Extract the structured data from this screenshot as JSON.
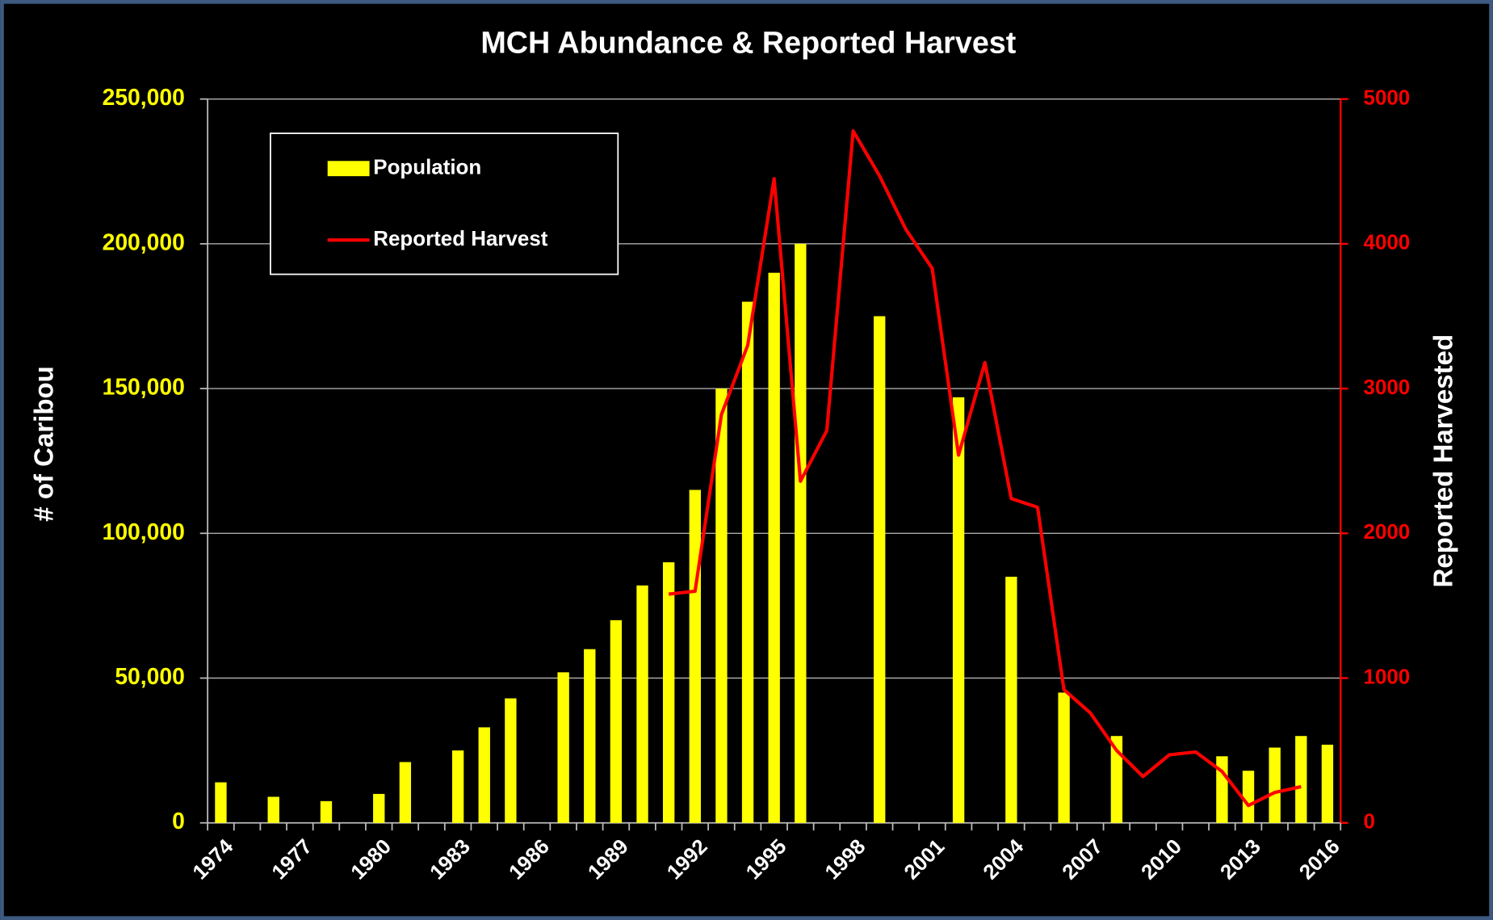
{
  "chart_data": {
    "type": "bar",
    "title": "MCH Abundance & Reported Harvest",
    "y_label": "# of Caribou",
    "y2_label": "Reported Harvested",
    "categories": [
      "1974",
      null,
      null,
      "1977",
      null,
      null,
      "1980",
      null,
      null,
      "1983",
      null,
      null,
      "1986",
      null,
      null,
      "1989",
      null,
      null,
      "1992",
      null,
      null,
      "1995",
      null,
      null,
      "1998",
      null,
      null,
      "2001",
      null,
      null,
      "2004",
      null,
      null,
      "2007",
      null,
      null,
      "2010",
      null,
      null,
      "2013",
      null,
      null,
      "2016"
    ],
    "series": [
      {
        "name": "Population",
        "type": "bar",
        "color": "#ffff00",
        "values": [
          14000,
          null,
          9000,
          null,
          7500,
          null,
          10000,
          21000,
          null,
          25000,
          33000,
          43000,
          null,
          52000,
          60000,
          70000,
          82000,
          90000,
          115000,
          150000,
          180000,
          190000,
          200000,
          null,
          null,
          175000,
          null,
          null,
          147000,
          null,
          85000,
          null,
          45000,
          null,
          30000,
          null,
          null,
          null,
          23000,
          18000,
          26000,
          30000,
          27000
        ]
      },
      {
        "name": "Reported Harvest",
        "type": "line",
        "axis": "y2",
        "color": "#ff0000",
        "values": [
          null,
          null,
          null,
          null,
          null,
          null,
          null,
          null,
          null,
          null,
          null,
          null,
          null,
          null,
          null,
          null,
          null,
          1580,
          1600,
          2820,
          3300,
          4450,
          2360,
          2710,
          4780,
          4470,
          4100,
          3830,
          2540,
          3180,
          2240,
          2180,
          920,
          760,
          500,
          320,
          470,
          490,
          355,
          120,
          210,
          250,
          null
        ]
      }
    ],
    "ylim": [
      0,
      250000
    ],
    "yticks": [
      {
        "value": 0,
        "label": "0"
      },
      {
        "value": 50000,
        "label": "50,000"
      },
      {
        "value": 100000,
        "label": "100,000"
      },
      {
        "value": 150000,
        "label": "150,000"
      },
      {
        "value": 200000,
        "label": "200,000"
      },
      {
        "value": 250000,
        "label": "250,000"
      }
    ],
    "y2lim": [
      0,
      5000
    ],
    "y2ticks": [
      0,
      1000,
      2000,
      3000,
      4000,
      5000
    ],
    "grid": true,
    "legend": "upper left"
  }
}
